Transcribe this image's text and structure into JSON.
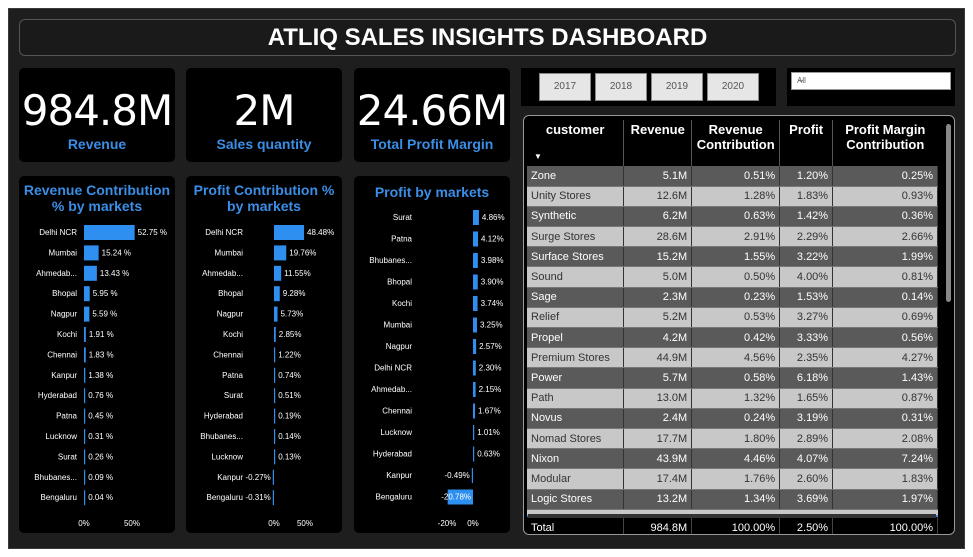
{
  "title": "ATLIQ SALES INSIGHTS DASHBOARD",
  "kpis": [
    {
      "value": "984.8M",
      "label": "Revenue"
    },
    {
      "value": "2M",
      "label": "Sales quantity"
    },
    {
      "value": "24.66M",
      "label": "Total Profit Margin"
    }
  ],
  "years": [
    "2017",
    "2018",
    "2019",
    "2020"
  ],
  "market_filter": {
    "selected": "All"
  },
  "colors": {
    "accent": "#3a8ee6",
    "bar": "#2f8ff0",
    "background": "#000000"
  },
  "chart_data": [
    {
      "type": "bar",
      "orientation": "horizontal",
      "title": "Revenue Contribution % by markets",
      "categories": [
        "Delhi NCR",
        "Mumbai",
        "Ahmedab...",
        "Bhopal",
        "Nagpur",
        "Kochi",
        "Chennai",
        "Kanpur",
        "Hyderabad",
        "Patna",
        "Lucknow",
        "Surat",
        "Bhubanes...",
        "Bengaluru"
      ],
      "values": [
        52.75,
        15.24,
        13.43,
        5.95,
        5.59,
        1.91,
        1.83,
        1.38,
        0.76,
        0.45,
        0.31,
        0.26,
        0.09,
        0.04
      ],
      "data_labels": [
        "52.75 %",
        "15.24 %",
        "13.43 %",
        "5.95 %",
        "5.59 %",
        "1.91 %",
        "1.83 %",
        "1.38 %",
        "0.76 %",
        "0.45 %",
        "0.31 %",
        "0.26 %",
        "0.09 %",
        "0.04 %"
      ],
      "xticks": [
        "0%",
        "50%"
      ],
      "xlim": [
        0,
        60
      ]
    },
    {
      "type": "bar",
      "orientation": "horizontal",
      "title": "Profit Contribution % by markets",
      "categories": [
        "Delhi NCR",
        "Mumbai",
        "Ahmedab...",
        "Bhopal",
        "Nagpur",
        "Kochi",
        "Chennai",
        "Patna",
        "Surat",
        "Hyderabad",
        "Bhubanes...",
        "Lucknow",
        "Kanpur",
        "Bengaluru"
      ],
      "values": [
        48.48,
        19.76,
        11.55,
        9.28,
        5.73,
        2.85,
        1.22,
        0.74,
        0.51,
        0.19,
        0.14,
        0.13,
        -0.27,
        -0.31
      ],
      "data_labels": [
        "48.48%",
        "19.76%",
        "11.55%",
        "9.28%",
        "5.73%",
        "2.85%",
        "1.22%",
        "0.74%",
        "0.51%",
        "0.19%",
        "0.14%",
        "0.13%",
        "-0.27%",
        "-0.31%"
      ],
      "xticks": [
        "0%",
        "50%"
      ],
      "xlim": [
        -3,
        60
      ]
    },
    {
      "type": "bar",
      "orientation": "horizontal",
      "title": "Profit by markets",
      "categories": [
        "Surat",
        "Patna",
        "Bhubanes...",
        "Bhopal",
        "Kochi",
        "Mumbai",
        "Nagpur",
        "Delhi NCR",
        "Ahmedab...",
        "Chennai",
        "Lucknow",
        "Hyderabad",
        "Kanpur",
        "Bengaluru"
      ],
      "values": [
        4.86,
        4.12,
        3.98,
        3.9,
        3.74,
        3.25,
        2.57,
        2.3,
        2.15,
        1.67,
        1.01,
        0.63,
        -0.49,
        -20.78
      ],
      "data_labels": [
        "4.86%",
        "4.12%",
        "3.98%",
        "3.90%",
        "3.74%",
        "3.25%",
        "2.57%",
        "2.30%",
        "2.15%",
        "1.67%",
        "1.01%",
        "0.63%",
        "-0.49%",
        "-20.78%"
      ],
      "xticks": [
        "-20%",
        "0%"
      ],
      "xlim": [
        -35,
        10
      ]
    }
  ],
  "table": {
    "headers": [
      "customer",
      "Revenue",
      "Revenue Contribution",
      "Profit",
      "Profit Margin Contribution"
    ],
    "rows": [
      [
        "Zone",
        "5.1M",
        "0.51%",
        "1.20%",
        "0.25%"
      ],
      [
        "Unity Stores",
        "12.6M",
        "1.28%",
        "1.83%",
        "0.93%"
      ],
      [
        "Synthetic",
        "6.2M",
        "0.63%",
        "1.42%",
        "0.36%"
      ],
      [
        "Surge Stores",
        "28.6M",
        "2.91%",
        "2.29%",
        "2.66%"
      ],
      [
        "Surface Stores",
        "15.2M",
        "1.55%",
        "3.22%",
        "1.99%"
      ],
      [
        "Sound",
        "5.0M",
        "0.50%",
        "4.00%",
        "0.81%"
      ],
      [
        "Sage",
        "2.3M",
        "0.23%",
        "1.53%",
        "0.14%"
      ],
      [
        "Relief",
        "5.2M",
        "0.53%",
        "3.27%",
        "0.69%"
      ],
      [
        "Propel",
        "4.2M",
        "0.42%",
        "3.33%",
        "0.56%"
      ],
      [
        "Premium Stores",
        "44.9M",
        "4.56%",
        "2.35%",
        "4.27%"
      ],
      [
        "Power",
        "5.7M",
        "0.58%",
        "6.18%",
        "1.43%"
      ],
      [
        "Path",
        "13.0M",
        "1.32%",
        "1.65%",
        "0.87%"
      ],
      [
        "Novus",
        "2.4M",
        "0.24%",
        "3.19%",
        "0.31%"
      ],
      [
        "Nomad Stores",
        "17.7M",
        "1.80%",
        "2.89%",
        "2.08%"
      ],
      [
        "Nixon",
        "43.9M",
        "4.46%",
        "4.07%",
        "7.24%"
      ],
      [
        "Modular",
        "17.4M",
        "1.76%",
        "2.60%",
        "1.83%"
      ],
      [
        "Logic Stores",
        "13.2M",
        "1.34%",
        "3.69%",
        "1.97%"
      ]
    ],
    "total": [
      "Total",
      "984.8M",
      "100.00%",
      "2.50%",
      "100.00%"
    ]
  }
}
